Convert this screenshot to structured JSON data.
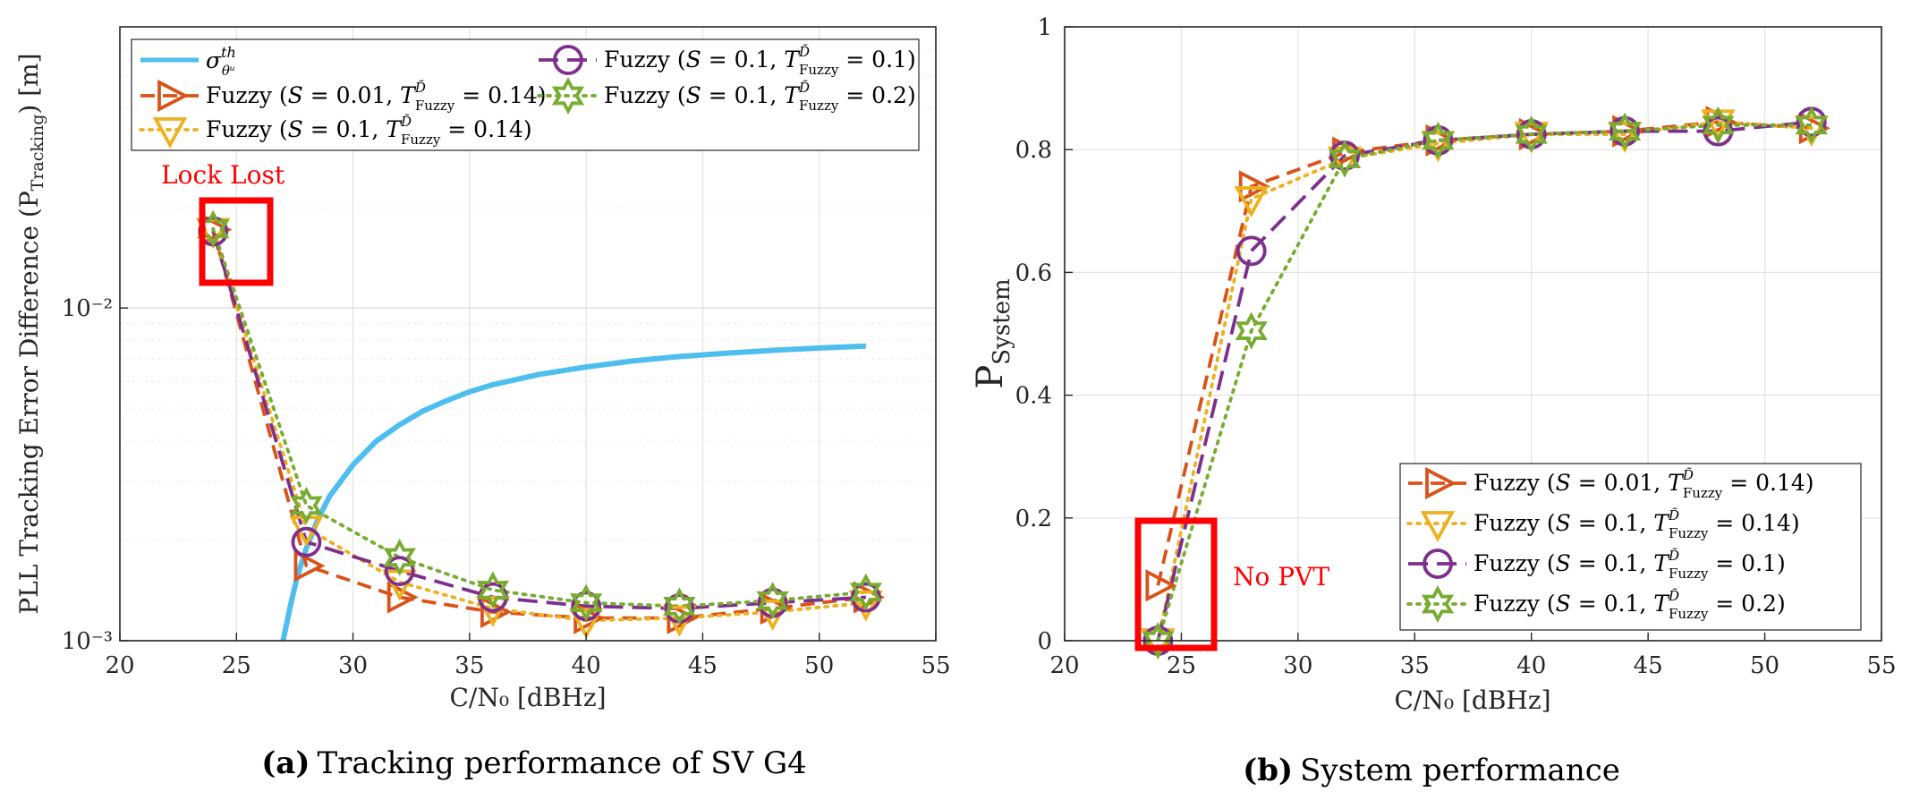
{
  "colors": {
    "threshold": "#4DBEEE",
    "s001_t014": "#D95319",
    "s01_t014": "#EDB120",
    "s01_t01": "#7E2F8E",
    "s01_t02": "#77AC30",
    "annotation": "#FF0000",
    "grid": "#E3E3E3"
  },
  "chart_data": [
    {
      "type": "line",
      "panel": "a",
      "caption_letter": "(a)",
      "caption_text": "Tracking performance of SV G4",
      "xlabel": "C/N₀ [dBHz]",
      "ylabel": "PLL Tracking Error Difference (P_Tracking) [m]",
      "yscale": "log",
      "xlim": [
        20,
        55
      ],
      "ylim": [
        0.001,
        0.07
      ],
      "xticks": [
        20,
        25,
        30,
        35,
        40,
        45,
        50,
        55
      ],
      "ytick_labels": [
        "10⁻³",
        "10⁻²"
      ],
      "threshold_curve": {
        "name": "σ_θᵘ^th",
        "x": [
          27.0,
          27.3,
          27.6,
          28,
          28.5,
          29,
          30,
          31,
          32,
          33,
          34,
          35,
          36,
          38,
          40,
          42,
          44,
          46,
          48,
          50,
          52
        ],
        "y": [
          0.001,
          0.00126,
          0.00155,
          0.0019,
          0.00232,
          0.00272,
          0.00338,
          0.00398,
          0.00446,
          0.0049,
          0.00526,
          0.0056,
          0.00588,
          0.00632,
          0.00665,
          0.00693,
          0.00715,
          0.00731,
          0.00746,
          0.00758,
          0.00768
        ]
      },
      "x": [
        24,
        28,
        32,
        36,
        40,
        44,
        48,
        52
      ],
      "series": [
        {
          "name": "Fuzzy (S = 0.01, T_Fuzzy^D̃ = 0.14)",
          "key": "s001_t014",
          "marker": "triangle-right",
          "values": [
            0.0172,
            0.00168,
            0.00135,
            0.00122,
            0.00117,
            0.00117,
            0.00125,
            0.00135
          ]
        },
        {
          "name": "Fuzzy (S = 0.1, T_Fuzzy^D̃ = 0.14)",
          "key": "s01_t014",
          "marker": "triangle-down",
          "values": [
            0.0171,
            0.00218,
            0.0015,
            0.00125,
            0.00115,
            0.00117,
            0.00122,
            0.0013
          ]
        },
        {
          "name": "Fuzzy (S = 0.1, T_Fuzzy^D̃ = 0.1)",
          "key": "s01_t01",
          "marker": "circle",
          "values": [
            0.017,
            0.00198,
            0.00162,
            0.00135,
            0.00127,
            0.00125,
            0.0013,
            0.00135
          ]
        },
        {
          "name": "Fuzzy (S = 0.1, T_Fuzzy^D̃ = 0.2)",
          "key": "s01_t02",
          "marker": "hexagram",
          "values": [
            0.0173,
            0.00255,
            0.00178,
            0.00142,
            0.0013,
            0.00127,
            0.00132,
            0.0014
          ]
        }
      ],
      "annotation": {
        "text": "Lock Lost"
      }
    },
    {
      "type": "line",
      "panel": "b",
      "caption_letter": "(b)",
      "caption_text": "System performance",
      "xlabel": "C/N₀ [dBHz]",
      "ylabel": "P_System",
      "xlim": [
        20,
        55
      ],
      "ylim": [
        0,
        1
      ],
      "xticks": [
        20,
        25,
        30,
        35,
        40,
        45,
        50,
        55
      ],
      "yticks": [
        0,
        0.2,
        0.4,
        0.6,
        0.8,
        1
      ],
      "ytick_labels": [
        "0",
        "0.2",
        "0.4",
        "0.6",
        "0.8",
        "1"
      ],
      "x": [
        24,
        28,
        32,
        36,
        40,
        44,
        48,
        52
      ],
      "series": [
        {
          "name": "Fuzzy (S = 0.01, T_Fuzzy^D̃ = 0.14)",
          "key": "s001_t014",
          "marker": "triangle-right",
          "values": [
            0.09,
            0.74,
            0.795,
            0.815,
            0.825,
            0.83,
            0.845,
            0.835
          ]
        },
        {
          "name": "Fuzzy (S = 0.1, T_Fuzzy^D̃ = 0.14)",
          "key": "s01_t014",
          "marker": "triangle-down",
          "values": [
            0,
            0.72,
            0.785,
            0.81,
            0.825,
            0.825,
            0.845,
            0.835
          ]
        },
        {
          "name": "Fuzzy (S = 0.1, T_Fuzzy^D̃ = 0.1)",
          "key": "s01_t01",
          "marker": "circle",
          "values": [
            0,
            0.635,
            0.79,
            0.815,
            0.825,
            0.83,
            0.83,
            0.845
          ]
        },
        {
          "name": "Fuzzy (S = 0.1, T_Fuzzy^D̃ = 0.2)",
          "key": "s01_t02",
          "marker": "hexagram",
          "values": [
            0,
            0.505,
            0.785,
            0.815,
            0.825,
            0.83,
            0.84,
            0.84
          ]
        }
      ],
      "annotation": {
        "text": "No PVT"
      }
    }
  ]
}
